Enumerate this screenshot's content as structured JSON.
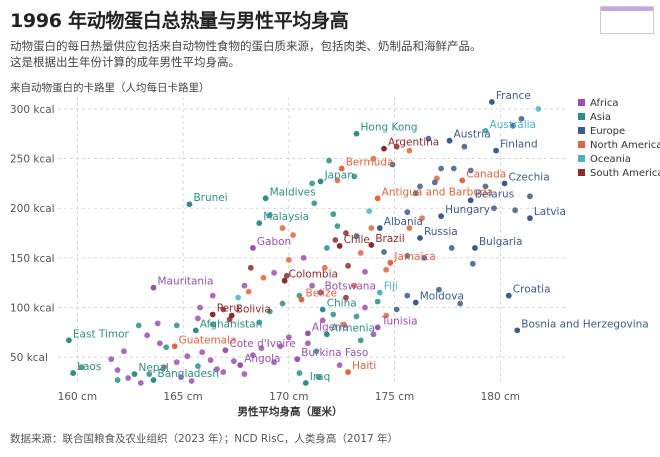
{
  "header": {
    "title": "1996 年动物蛋白总热量与男性平均身高",
    "subtitle": "动物蛋白的每日热量供应包括来自动物性食物的蛋白质来源，包括肉类、奶制品和海鲜产品。这是根据出生年份计算的成年男性平均身高。",
    "source": "数据来源：联合国粮食及农业组织（2023 年）；NCD RisC，人类身高（2017 年）"
  },
  "colors": {
    "Africa": "#9b50b0",
    "Asia": "#2e8f86",
    "Europe": "#3d5c89",
    "North America": "#e0663f",
    "Oceania": "#4db3bf",
    "South America": "#8c2b2b",
    "grid": "#cfcfcf",
    "bg": "#ffffff"
  },
  "chart_data": {
    "type": "scatter",
    "ylabel": "来自动物蛋白的卡路里（人均每日卡路里）",
    "xlabel": "男性平均身高（厘米）",
    "xlim": [
      158.8,
      183.2
    ],
    "ylim": [
      25,
      312
    ],
    "x_ticks": [
      {
        "value": 160,
        "label": "160 cm"
      },
      {
        "value": 165,
        "label": "165 cm"
      },
      {
        "value": 170,
        "label": "170 cm"
      },
      {
        "value": 175,
        "label": "175 cm"
      },
      {
        "value": 180,
        "label": "180 cm"
      }
    ],
    "y_ticks": [
      {
        "value": 50,
        "label": "50 kcal"
      },
      {
        "value": 100,
        "label": "100 kcal"
      },
      {
        "value": 150,
        "label": "150 kcal"
      },
      {
        "value": 200,
        "label": "200 kcal"
      },
      {
        "value": 250,
        "label": "250 kcal"
      },
      {
        "value": 300,
        "label": "300 kcal"
      }
    ],
    "legend": [
      "Africa",
      "Asia",
      "Europe",
      "North America",
      "Oceania",
      "South America"
    ],
    "labeled_points": [
      {
        "name": "France",
        "x": 179.6,
        "y": 307,
        "region": "Europe"
      },
      {
        "name": "Hong Kong",
        "x": 173.2,
        "y": 275,
        "region": "Asia"
      },
      {
        "name": "Austria",
        "x": 177.6,
        "y": 268,
        "region": "Europe"
      },
      {
        "name": "Australia",
        "x": 179.3,
        "y": 278,
        "region": "Oceania"
      },
      {
        "name": "Argentina",
        "x": 174.5,
        "y": 260,
        "region": "South America"
      },
      {
        "name": "Finland",
        "x": 179.8,
        "y": 258,
        "region": "Europe"
      },
      {
        "name": "Bermuda",
        "x": 172.5,
        "y": 240,
        "region": "North America"
      },
      {
        "name": "Canada",
        "x": 178.2,
        "y": 228,
        "region": "North America"
      },
      {
        "name": "Japan",
        "x": 171.5,
        "y": 227,
        "region": "Asia"
      },
      {
        "name": "Czechia",
        "x": 180.2,
        "y": 225,
        "region": "Europe"
      },
      {
        "name": "Brunei",
        "x": 165.3,
        "y": 204,
        "region": "Asia"
      },
      {
        "name": "Maldives",
        "x": 168.9,
        "y": 210,
        "region": "Asia"
      },
      {
        "name": "Antigua and Barbuda",
        "x": 174.2,
        "y": 210,
        "region": "North America"
      },
      {
        "name": "Belarus",
        "x": 178.6,
        "y": 208,
        "region": "Europe"
      },
      {
        "name": "Hungary",
        "x": 177.2,
        "y": 192,
        "region": "Europe"
      },
      {
        "name": "Latvia",
        "x": 181.4,
        "y": 190,
        "region": "Europe"
      },
      {
        "name": "Malaysia",
        "x": 168.6,
        "y": 185,
        "region": "Asia"
      },
      {
        "name": "Albania",
        "x": 174.3,
        "y": 180,
        "region": "Europe"
      },
      {
        "name": "Russia",
        "x": 176.2,
        "y": 170,
        "region": "Europe"
      },
      {
        "name": "Chile",
        "x": 172.4,
        "y": 162,
        "region": "South America"
      },
      {
        "name": "Brazil",
        "x": 173.9,
        "y": 163,
        "region": "South America"
      },
      {
        "name": "Gabon",
        "x": 168.3,
        "y": 160,
        "region": "Africa"
      },
      {
        "name": "Bulgaria",
        "x": 178.8,
        "y": 160,
        "region": "Europe"
      },
      {
        "name": "Jamaica",
        "x": 174.8,
        "y": 145,
        "region": "North America"
      },
      {
        "name": "Colombia",
        "x": 169.8,
        "y": 127,
        "region": "South America"
      },
      {
        "name": "Mauritania",
        "x": 163.6,
        "y": 120,
        "region": "Africa"
      },
      {
        "name": "Botswana",
        "x": 171.5,
        "y": 115,
        "region": "Africa"
      },
      {
        "name": "Fiji",
        "x": 174.3,
        "y": 115,
        "region": "Oceania"
      },
      {
        "name": "Croatia",
        "x": 180.4,
        "y": 112,
        "region": "Europe"
      },
      {
        "name": "Belize",
        "x": 170.6,
        "y": 108,
        "region": "North America"
      },
      {
        "name": "Moldova",
        "x": 176.0,
        "y": 105,
        "region": "Europe"
      },
      {
        "name": "China",
        "x": 171.6,
        "y": 98,
        "region": "Asia"
      },
      {
        "name": "Peru",
        "x": 166.4,
        "y": 93,
        "region": "South America"
      },
      {
        "name": "Bolivia",
        "x": 167.3,
        "y": 92,
        "region": "South America"
      },
      {
        "name": "Tunisia",
        "x": 174.2,
        "y": 80,
        "region": "Africa"
      },
      {
        "name": "Bosnia and Herzegovina",
        "x": 180.8,
        "y": 77,
        "region": "Europe"
      },
      {
        "name": "Afghanistan",
        "x": 165.6,
        "y": 77,
        "region": "Asia"
      },
      {
        "name": "Algeria",
        "x": 170.9,
        "y": 74,
        "region": "Africa"
      },
      {
        "name": "Armenia",
        "x": 171.8,
        "y": 73,
        "region": "Asia"
      },
      {
        "name": "East Timor",
        "x": 159.6,
        "y": 67,
        "region": "Asia"
      },
      {
        "name": "Guatemala",
        "x": 164.6,
        "y": 61,
        "region": "North America"
      },
      {
        "name": "Cote d'Ivoire",
        "x": 167.0,
        "y": 57,
        "region": "Africa"
      },
      {
        "name": "Burkina Faso",
        "x": 170.4,
        "y": 48,
        "region": "Africa"
      },
      {
        "name": "Angola",
        "x": 167.7,
        "y": 42,
        "region": "Africa"
      },
      {
        "name": "Laos",
        "x": 159.8,
        "y": 34,
        "region": "Asia"
      },
      {
        "name": "Nepal",
        "x": 162.7,
        "y": 33,
        "region": "Asia"
      },
      {
        "name": "Bangladesh",
        "x": 163.6,
        "y": 27,
        "region": "Asia"
      },
      {
        "name": "Haiti",
        "x": 172.8,
        "y": 35,
        "region": "North America"
      },
      {
        "name": "Iraq",
        "x": 170.8,
        "y": 24,
        "region": "Asia"
      }
    ],
    "other_points": [
      {
        "x": 180.6,
        "y": 283,
        "region": "Europe"
      },
      {
        "x": 181.8,
        "y": 300,
        "region": "Oceania"
      },
      {
        "x": 181.0,
        "y": 290,
        "region": "Europe"
      },
      {
        "x": 178.3,
        "y": 262,
        "region": "Europe"
      },
      {
        "x": 177.8,
        "y": 240,
        "region": "Europe"
      },
      {
        "x": 178.6,
        "y": 238,
        "region": "Europe"
      },
      {
        "x": 177.2,
        "y": 240,
        "region": "Europe"
      },
      {
        "x": 177.0,
        "y": 230,
        "region": "North America"
      },
      {
        "x": 176.9,
        "y": 226,
        "region": "Europe"
      },
      {
        "x": 176.2,
        "y": 222,
        "region": "Europe"
      },
      {
        "x": 176.0,
        "y": 215,
        "region": "Europe"
      },
      {
        "x": 179.3,
        "y": 222,
        "region": "Europe"
      },
      {
        "x": 179.7,
        "y": 200,
        "region": "Europe"
      },
      {
        "x": 180.7,
        "y": 198,
        "region": "Europe"
      },
      {
        "x": 181.4,
        "y": 212,
        "region": "Europe"
      },
      {
        "x": 175.6,
        "y": 196,
        "region": "Europe"
      },
      {
        "x": 176.3,
        "y": 190,
        "region": "North America"
      },
      {
        "x": 175.7,
        "y": 180,
        "region": "North America"
      },
      {
        "x": 173.9,
        "y": 180,
        "region": "North America"
      },
      {
        "x": 173.2,
        "y": 172,
        "region": "Europe"
      },
      {
        "x": 172.3,
        "y": 182,
        "region": "Asia"
      },
      {
        "x": 173.8,
        "y": 197,
        "region": "Oceania"
      },
      {
        "x": 172.1,
        "y": 194,
        "region": "Asia"
      },
      {
        "x": 171.2,
        "y": 205,
        "region": "Asia"
      },
      {
        "x": 171.1,
        "y": 225,
        "region": "Asia"
      },
      {
        "x": 172.3,
        "y": 228,
        "region": "North America"
      },
      {
        "x": 173.1,
        "y": 232,
        "region": "Asia"
      },
      {
        "x": 174.9,
        "y": 244,
        "region": "Europe"
      },
      {
        "x": 174.0,
        "y": 250,
        "region": "North America"
      },
      {
        "x": 175.7,
        "y": 258,
        "region": "North America"
      },
      {
        "x": 176.6,
        "y": 270,
        "region": "Europe"
      },
      {
        "x": 175.1,
        "y": 262,
        "region": "South America"
      },
      {
        "x": 171.9,
        "y": 248,
        "region": "Asia"
      },
      {
        "x": 169.1,
        "y": 193,
        "region": "Asia"
      },
      {
        "x": 169.7,
        "y": 180,
        "region": "North America"
      },
      {
        "x": 170.2,
        "y": 173,
        "region": "North America"
      },
      {
        "x": 171.8,
        "y": 160,
        "region": "Asia"
      },
      {
        "x": 172.2,
        "y": 168,
        "region": "South America"
      },
      {
        "x": 172.7,
        "y": 175,
        "region": "South America"
      },
      {
        "x": 173.4,
        "y": 155,
        "region": "North America"
      },
      {
        "x": 174.5,
        "y": 156,
        "region": "Europe"
      },
      {
        "x": 175.6,
        "y": 152,
        "region": "Europe"
      },
      {
        "x": 176.4,
        "y": 150,
        "region": "Europe"
      },
      {
        "x": 177.7,
        "y": 160,
        "region": "Europe"
      },
      {
        "x": 178.7,
        "y": 144,
        "region": "Europe"
      },
      {
        "x": 174.6,
        "y": 138,
        "region": "North America"
      },
      {
        "x": 173.6,
        "y": 136,
        "region": "Africa"
      },
      {
        "x": 172.8,
        "y": 142,
        "region": "South America"
      },
      {
        "x": 171.7,
        "y": 140,
        "region": "North America"
      },
      {
        "x": 170.7,
        "y": 150,
        "region": "Africa"
      },
      {
        "x": 170.0,
        "y": 148,
        "region": "North America"
      },
      {
        "x": 169.3,
        "y": 135,
        "region": "Africa"
      },
      {
        "x": 169.9,
        "y": 132,
        "region": "South America"
      },
      {
        "x": 168.8,
        "y": 130,
        "region": "North America"
      },
      {
        "x": 168.2,
        "y": 140,
        "region": "South America"
      },
      {
        "x": 167.9,
        "y": 122,
        "region": "Africa"
      },
      {
        "x": 168.1,
        "y": 116,
        "region": "North America"
      },
      {
        "x": 167.6,
        "y": 110,
        "region": "Oceania"
      },
      {
        "x": 166.4,
        "y": 112,
        "region": "Africa"
      },
      {
        "x": 165.8,
        "y": 100,
        "region": "Africa"
      },
      {
        "x": 166.9,
        "y": 98,
        "region": "South America"
      },
      {
        "x": 167.2,
        "y": 88,
        "region": "South America"
      },
      {
        "x": 166.4,
        "y": 83,
        "region": "Asia"
      },
      {
        "x": 165.7,
        "y": 89,
        "region": "Africa"
      },
      {
        "x": 164.7,
        "y": 82,
        "region": "Asia"
      },
      {
        "x": 163.8,
        "y": 84,
        "region": "Africa"
      },
      {
        "x": 163.3,
        "y": 72,
        "region": "Africa"
      },
      {
        "x": 163.9,
        "y": 64,
        "region": "Africa"
      },
      {
        "x": 162.2,
        "y": 56,
        "region": "Africa"
      },
      {
        "x": 161.6,
        "y": 48,
        "region": "Africa"
      },
      {
        "x": 161.9,
        "y": 37,
        "region": "Africa"
      },
      {
        "x": 162.4,
        "y": 29,
        "region": "Africa"
      },
      {
        "x": 163.0,
        "y": 24,
        "region": "Africa"
      },
      {
        "x": 164.1,
        "y": 40,
        "region": "Africa"
      },
      {
        "x": 164.7,
        "y": 45,
        "region": "Africa"
      },
      {
        "x": 165.2,
        "y": 51,
        "region": "Africa"
      },
      {
        "x": 165.7,
        "y": 41,
        "region": "Asia"
      },
      {
        "x": 165.9,
        "y": 55,
        "region": "Africa"
      },
      {
        "x": 166.3,
        "y": 47,
        "region": "Africa"
      },
      {
        "x": 166.6,
        "y": 38,
        "region": "Africa"
      },
      {
        "x": 166.9,
        "y": 35,
        "region": "Africa"
      },
      {
        "x": 167.4,
        "y": 46,
        "region": "Africa"
      },
      {
        "x": 167.9,
        "y": 33,
        "region": "Africa"
      },
      {
        "x": 168.3,
        "y": 52,
        "region": "Africa"
      },
      {
        "x": 168.7,
        "y": 59,
        "region": "Africa"
      },
      {
        "x": 169.3,
        "y": 45,
        "region": "Africa"
      },
      {
        "x": 169.6,
        "y": 61,
        "region": "Africa"
      },
      {
        "x": 170.0,
        "y": 70,
        "region": "Africa"
      },
      {
        "x": 170.9,
        "y": 64,
        "region": "Africa"
      },
      {
        "x": 171.3,
        "y": 56,
        "region": "Asia"
      },
      {
        "x": 171.6,
        "y": 87,
        "region": "Africa"
      },
      {
        "x": 172.1,
        "y": 93,
        "region": "Asia"
      },
      {
        "x": 172.6,
        "y": 83,
        "region": "North America"
      },
      {
        "x": 173.2,
        "y": 91,
        "region": "Asia"
      },
      {
        "x": 173.6,
        "y": 100,
        "region": "Africa"
      },
      {
        "x": 174.2,
        "y": 106,
        "region": "Asia"
      },
      {
        "x": 174.6,
        "y": 92,
        "region": "North America"
      },
      {
        "x": 175.1,
        "y": 98,
        "region": "Europe"
      },
      {
        "x": 175.6,
        "y": 112,
        "region": "Europe"
      },
      {
        "x": 171.1,
        "y": 122,
        "region": "Africa"
      },
      {
        "x": 170.5,
        "y": 112,
        "region": "Asia"
      },
      {
        "x": 169.7,
        "y": 104,
        "region": "Asia"
      },
      {
        "x": 169.1,
        "y": 96,
        "region": "Asia"
      },
      {
        "x": 168.6,
        "y": 85,
        "region": "Asia"
      },
      {
        "x": 162.9,
        "y": 82,
        "region": "Asia"
      },
      {
        "x": 164.2,
        "y": 60,
        "region": "Asia"
      },
      {
        "x": 160.2,
        "y": 40,
        "region": "Asia"
      },
      {
        "x": 161.9,
        "y": 27,
        "region": "Asia"
      },
      {
        "x": 163.4,
        "y": 33,
        "region": "Asia"
      },
      {
        "x": 164.9,
        "y": 30,
        "region": "Africa"
      },
      {
        "x": 165.4,
        "y": 26,
        "region": "Africa"
      },
      {
        "x": 170.5,
        "y": 34,
        "region": "Asia"
      },
      {
        "x": 171.4,
        "y": 30,
        "region": "Asia"
      },
      {
        "x": 172.4,
        "y": 42,
        "region": "Africa"
      },
      {
        "x": 173.4,
        "y": 67,
        "region": "Asia"
      },
      {
        "x": 174.0,
        "y": 73,
        "region": "Africa"
      },
      {
        "x": 178.1,
        "y": 104,
        "region": "Europe"
      },
      {
        "x": 177.1,
        "y": 118,
        "region": "Europe"
      },
      {
        "x": 172.7,
        "y": 110,
        "region": "South America"
      },
      {
        "x": 173.1,
        "y": 122,
        "region": "North America"
      }
    ]
  }
}
